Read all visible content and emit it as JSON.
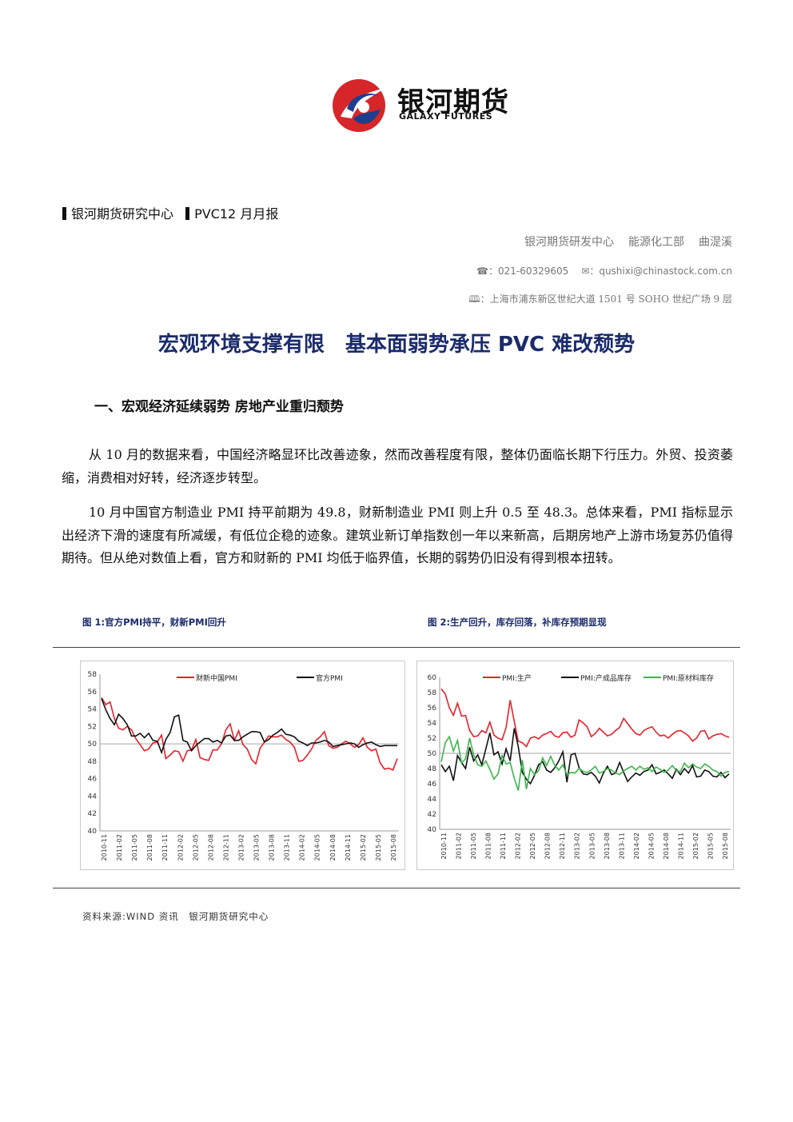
{
  "logo": {
    "cn": "银河期货",
    "en": "GALAXY FUTURES"
  },
  "header": {
    "center": "银河期货研究中心",
    "report": "PVC12 月月报"
  },
  "author": {
    "dept": "银河期货研发中心",
    "group": "能源化工部",
    "name": "曲湜溪"
  },
  "contact": {
    "phone": "☎：021-60329605",
    "email": "✉：qushixi@chinastock.com.cn"
  },
  "address": "🕮：上海市浦东新区世纪大道 1501 号 SOHO 世纪广场 9 层",
  "title": "宏观环境支撑有限　基本面弱势承压 PVC 难改颓势",
  "section1": "一、宏观经济延续弱势 房地产业重归颓势",
  "paragraphs": [
    "从 10 月的数据来看，中国经济略显环比改善迹象，然而改善程度有限，整体仍面临长期下行压力。外贸、投资萎缩，消费相对好转，经济逐步转型。",
    "10 月中国官方制造业 PMI 持平前期为 49.8，财新制造业 PMI 则上升 0.5 至 48.3。总体来看，PMI 指标显示出经济下滑的速度有所减缓，有低位企稳的迹象。建筑业新订单指数创一年以来新高，后期房地产上游市场复苏仍值得期待。但从绝对数值上看，官方和财新的 PMI 均低于临界值，长期的弱势仍旧没有得到根本扭转。"
  ],
  "figures": [
    {
      "caption": "图 1:官方PMI持平，财新PMI回升"
    },
    {
      "caption": "图 2:生产回升，库存回落，补库存预期显现"
    }
  ],
  "source": "资料来源:WIND 资讯　银河期货研究中心",
  "chart_data": [
    {
      "type": "line",
      "title": "",
      "xlabel": "",
      "ylabel": "",
      "ylim": [
        40,
        58
      ],
      "yticks": [
        40,
        42,
        44,
        46,
        48,
        50,
        52,
        54,
        56,
        58
      ],
      "reference_line": 50,
      "xticks": [
        "2010-11",
        "2011-02",
        "2011-05",
        "2011-08",
        "2011-11",
        "2012-02",
        "2012-05",
        "2012-08",
        "2012-11",
        "2013-02",
        "2013-05",
        "2013-08",
        "2013-11",
        "2014-02",
        "2014-05",
        "2014-08",
        "2014-11",
        "2015-02",
        "2015-05",
        "2015-08"
      ],
      "legend": "top",
      "series": [
        {
          "name": "财新中国PMI",
          "color": "#e8202a",
          "values": [
            55.3,
            54.5,
            54.8,
            52.9,
            51.8,
            51.6,
            52.0,
            51.6,
            50.6,
            49.9,
            49.2,
            49.4,
            50.1,
            50.2,
            51.0,
            48.3,
            48.7,
            49.2,
            49.1,
            48.0,
            49.2,
            49.3,
            50.5,
            48.4,
            48.2,
            48.1,
            49.3,
            49.3,
            50.0,
            51.6,
            52.3,
            50.4,
            51.5,
            49.9,
            49.4,
            48.2,
            47.7,
            49.5,
            50.2,
            50.9,
            50.8,
            50.8,
            51.0,
            50.5,
            50.2,
            49.6,
            48.0,
            48.1,
            48.7,
            49.4,
            50.4,
            50.8,
            51.4,
            49.8,
            49.5,
            49.6,
            50.0,
            50.3,
            50.0,
            49.6,
            49.9,
            50.7,
            49.6,
            49.2,
            49.4,
            47.8,
            47.1,
            47.2,
            47.0,
            48.3
          ]
        },
        {
          "name": "官方PMI",
          "color": "#111111",
          "values": [
            55.2,
            53.9,
            52.9,
            52.2,
            53.4,
            52.9,
            52.2,
            50.9,
            50.9,
            51.2,
            50.7,
            51.2,
            50.4,
            50.3,
            49.0,
            50.5,
            51.3,
            53.1,
            53.3,
            50.4,
            50.2,
            49.2,
            49.8,
            50.2,
            50.6,
            50.6,
            50.2,
            50.4,
            50.1,
            50.9,
            51.0,
            50.4,
            50.4,
            50.8,
            51.1,
            51.4,
            51.4,
            51.3,
            50.2,
            50.5,
            51.0,
            51.3,
            51.7,
            51.1,
            51.0,
            50.8,
            50.3,
            50.1,
            49.8,
            50.1,
            50.1,
            50.2,
            50.4,
            50.2,
            49.7,
            49.8,
            49.9,
            50.0,
            50.1,
            50.0,
            49.6,
            49.9,
            50.1,
            50.2,
            49.9,
            49.7,
            49.8,
            49.8,
            49.8,
            49.8
          ]
        }
      ]
    },
    {
      "type": "line",
      "title": "",
      "xlabel": "",
      "ylabel": "",
      "ylim": [
        40,
        60
      ],
      "yticks": [
        40,
        42,
        44,
        46,
        48,
        50,
        52,
        54,
        56,
        58,
        60
      ],
      "reference_line": 50,
      "xticks": [
        "2010-11",
        "2011-02",
        "2011-05",
        "2011-08",
        "2011-11",
        "2012-02",
        "2012-05",
        "2012-08",
        "2012-11",
        "2013-02",
        "2013-05",
        "2013-08",
        "2013-11",
        "2014-02",
        "2014-05",
        "2014-08",
        "2014-11",
        "2015-02",
        "2015-05",
        "2015-08"
      ],
      "legend": "top",
      "series": [
        {
          "name": "PMI:生产",
          "color": "#e8202a",
          "values": [
            58.5,
            57.8,
            56.0,
            55.0,
            56.6,
            54.9,
            55.0,
            53.0,
            52.2,
            52.3,
            53.0,
            52.7,
            54.1,
            52.4,
            52.0,
            51.8,
            53.4,
            57.0,
            54.2,
            51.6,
            51.4,
            50.9,
            52.0,
            52.2,
            51.9,
            52.4,
            52.6,
            52.9,
            52.3,
            52.1,
            52.7,
            52.8,
            52.1,
            52.4,
            54.4,
            54.0,
            53.5,
            52.2,
            52.6,
            53.3,
            52.8,
            52.3,
            52.5,
            53.0,
            53.4,
            54.6,
            53.9,
            53.2,
            52.6,
            52.4,
            53.0,
            53.3,
            53.5,
            52.8,
            52.3,
            52.4,
            52.0,
            52.5,
            52.9,
            53.0,
            52.7,
            52.3,
            51.6,
            52.0,
            52.9,
            53.0,
            51.9,
            52.3,
            52.5,
            52.6,
            52.3,
            52.1
          ]
        },
        {
          "name": "PMI:产成品库存",
          "color": "#111111",
          "values": [
            48.5,
            47.6,
            48.3,
            46.4,
            49.7,
            48.8,
            48.0,
            50.8,
            49.0,
            49.8,
            48.5,
            50.6,
            52.7,
            49.8,
            50.2,
            48.6,
            50.6,
            49.0,
            53.3,
            50.9,
            47.5,
            46.6,
            46.0,
            47.1,
            48.5,
            48.9,
            47.8,
            47.5,
            48.1,
            49.0,
            50.2,
            46.2,
            49.8,
            50.0,
            48.1,
            47.3,
            47.2,
            47.5,
            47.0,
            46.1,
            47.4,
            48.3,
            47.2,
            47.4,
            48.8,
            47.5,
            46.3,
            46.9,
            47.4,
            47.1,
            47.6,
            47.8,
            48.5,
            47.3,
            47.5,
            47.8,
            47.3,
            46.7,
            47.9,
            47.2,
            48.0,
            47.4,
            48.4,
            46.9,
            47.0,
            47.8,
            47.6,
            47.0,
            46.9,
            47.5,
            46.8,
            47.3
          ]
        },
        {
          "name": "PMI:原材料库存",
          "color": "#3bb54a",
          "values": [
            48.9,
            51.4,
            52.2,
            50.3,
            51.7,
            48.7,
            49.3,
            52.0,
            49.8,
            48.5,
            48.3,
            49.0,
            47.9,
            46.6,
            47.3,
            49.7,
            48.6,
            48.8,
            46.7,
            45.1,
            49.1,
            45.3,
            48.0,
            47.2,
            47.7,
            49.4,
            48.4,
            49.6,
            48.4,
            47.8,
            48.5,
            47.2,
            47.5,
            47.4,
            48.0,
            47.6,
            47.5,
            47.8,
            48.3,
            47.4,
            47.6,
            48.0,
            47.8,
            47.4,
            47.2,
            47.7,
            48.0,
            48.3,
            47.8,
            48.3,
            47.9,
            48.1,
            47.6,
            48.2,
            47.9,
            47.5,
            47.8,
            48.4,
            47.7,
            47.6,
            48.7,
            48.1,
            48.6,
            48.2,
            48.0,
            48.6,
            48.3,
            47.8,
            47.6,
            47.0,
            47.5,
            47.6
          ]
        }
      ]
    }
  ]
}
